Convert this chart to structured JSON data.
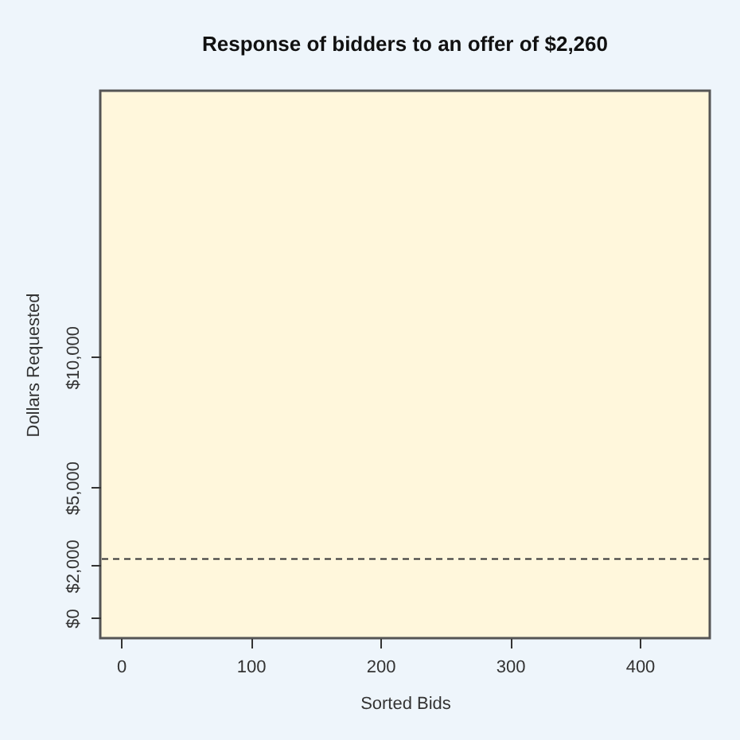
{
  "chart_data": {
    "type": "scatter",
    "title": "Response of bidders to an offer of $2,260",
    "xlabel": "Sorted Bids",
    "ylabel": "Dollars Requested",
    "xlim": [
      -16,
      454
    ],
    "xticks": [
      0,
      100,
      200,
      300,
      400
    ],
    "ylim": [
      -780,
      20220
    ],
    "yticks": [
      {
        "value": 0,
        "label": "$0"
      },
      {
        "value": 2000,
        "label": "$2,000"
      },
      {
        "value": 5000,
        "label": "$5,000"
      },
      {
        "value": 10000,
        "label": "$10,000"
      }
    ],
    "ref_lines": [
      {
        "axis": "y",
        "value": 2260,
        "line_style": "dashed",
        "color": "#333333"
      }
    ]
  }
}
